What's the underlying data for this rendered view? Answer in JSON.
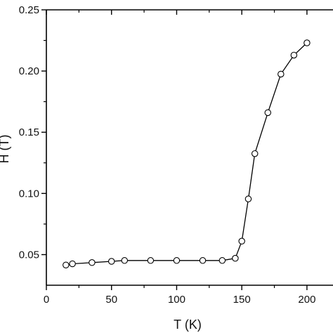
{
  "chart_data": {
    "type": "line",
    "xlabel": "T (K)",
    "ylabel": "H (T)",
    "xlim": [
      0,
      220
    ],
    "ylim": [
      0.025,
      0.25
    ],
    "x_ticks": [
      0,
      50,
      100,
      150,
      200
    ],
    "x_tick_labels": [
      "0",
      "50",
      "100",
      "150",
      "200"
    ],
    "y_ticks": [
      0.05,
      0.1,
      0.15,
      0.2,
      0.25
    ],
    "y_tick_labels": [
      "0.05",
      "0.10",
      "0.15",
      "0.20",
      "0.25"
    ],
    "grid": false,
    "marker": "open-circle",
    "series": [
      {
        "x": [
          15,
          20,
          35,
          50,
          60,
          80,
          100,
          120,
          135,
          145,
          150,
          155,
          160,
          170,
          180,
          190,
          200
        ],
        "y": [
          0.0415,
          0.0425,
          0.0435,
          0.0445,
          0.0452,
          0.0452,
          0.0452,
          0.0452,
          0.0452,
          0.047,
          0.061,
          0.0955,
          0.1325,
          0.166,
          0.1975,
          0.213,
          0.223
        ]
      }
    ]
  }
}
